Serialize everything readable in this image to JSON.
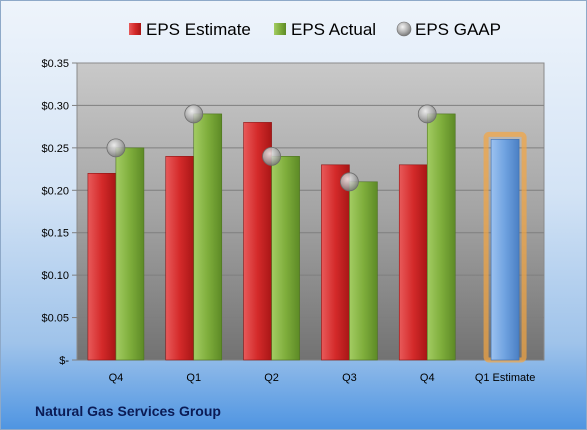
{
  "company": "Natural Gas Services Group",
  "chart_data": {
    "type": "bar",
    "categories": [
      "Q4",
      "Q1",
      "Q2",
      "Q3",
      "Q4",
      "Q1 Estimate"
    ],
    "series": [
      {
        "name": "EPS Estimate",
        "type": "bar",
        "color": "#d42a2a",
        "values": [
          0.22,
          0.24,
          0.28,
          0.23,
          0.23,
          null
        ]
      },
      {
        "name": "EPS Actual",
        "type": "bar",
        "color": "#7fae3c",
        "values": [
          0.25,
          0.29,
          0.24,
          0.21,
          0.29,
          null
        ]
      },
      {
        "name": "EPS GAAP",
        "type": "scatter",
        "color": "#b4b4b4",
        "values": [
          0.25,
          0.29,
          0.24,
          0.21,
          0.29,
          null
        ]
      }
    ],
    "highlight": {
      "category": "Q1 Estimate",
      "value": 0.26,
      "color": "#6fa2e0",
      "glow": "#f5a540"
    },
    "ylim": [
      0,
      0.35
    ],
    "yticks": [
      0,
      0.05,
      0.1,
      0.15,
      0.2,
      0.25,
      0.3,
      0.35
    ],
    "ytick_labels": [
      "$-",
      "$0.05",
      "$0.10",
      "$0.15",
      "$0.20",
      "$0.25",
      "$0.30",
      "$0.35"
    ],
    "grid": true,
    "legend_position": "top"
  }
}
